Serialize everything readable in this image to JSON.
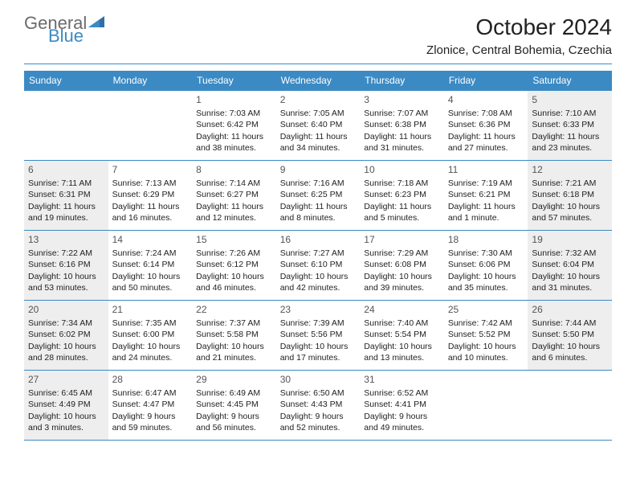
{
  "brand": {
    "word1": "General",
    "word2": "Blue"
  },
  "title": "October 2024",
  "location": "Zlonice, Central Bohemia, Czechia",
  "colors": {
    "accent": "#3b8ac4",
    "shade": "#eeeeee",
    "text": "#222222",
    "logo_gray": "#6b6b6b",
    "bg": "#ffffff"
  },
  "day_headers": [
    "Sunday",
    "Monday",
    "Tuesday",
    "Wednesday",
    "Thursday",
    "Friday",
    "Saturday"
  ],
  "weeks": [
    [
      {
        "n": "",
        "sr": "",
        "ss": "",
        "dl": "",
        "shade": false
      },
      {
        "n": "",
        "sr": "",
        "ss": "",
        "dl": "",
        "shade": false
      },
      {
        "n": "1",
        "sr": "Sunrise: 7:03 AM",
        "ss": "Sunset: 6:42 PM",
        "dl": "Daylight: 11 hours and 38 minutes.",
        "shade": false
      },
      {
        "n": "2",
        "sr": "Sunrise: 7:05 AM",
        "ss": "Sunset: 6:40 PM",
        "dl": "Daylight: 11 hours and 34 minutes.",
        "shade": false
      },
      {
        "n": "3",
        "sr": "Sunrise: 7:07 AM",
        "ss": "Sunset: 6:38 PM",
        "dl": "Daylight: 11 hours and 31 minutes.",
        "shade": false
      },
      {
        "n": "4",
        "sr": "Sunrise: 7:08 AM",
        "ss": "Sunset: 6:36 PM",
        "dl": "Daylight: 11 hours and 27 minutes.",
        "shade": false
      },
      {
        "n": "5",
        "sr": "Sunrise: 7:10 AM",
        "ss": "Sunset: 6:33 PM",
        "dl": "Daylight: 11 hours and 23 minutes.",
        "shade": true
      }
    ],
    [
      {
        "n": "6",
        "sr": "Sunrise: 7:11 AM",
        "ss": "Sunset: 6:31 PM",
        "dl": "Daylight: 11 hours and 19 minutes.",
        "shade": true
      },
      {
        "n": "7",
        "sr": "Sunrise: 7:13 AM",
        "ss": "Sunset: 6:29 PM",
        "dl": "Daylight: 11 hours and 16 minutes.",
        "shade": false
      },
      {
        "n": "8",
        "sr": "Sunrise: 7:14 AM",
        "ss": "Sunset: 6:27 PM",
        "dl": "Daylight: 11 hours and 12 minutes.",
        "shade": false
      },
      {
        "n": "9",
        "sr": "Sunrise: 7:16 AM",
        "ss": "Sunset: 6:25 PM",
        "dl": "Daylight: 11 hours and 8 minutes.",
        "shade": false
      },
      {
        "n": "10",
        "sr": "Sunrise: 7:18 AM",
        "ss": "Sunset: 6:23 PM",
        "dl": "Daylight: 11 hours and 5 minutes.",
        "shade": false
      },
      {
        "n": "11",
        "sr": "Sunrise: 7:19 AM",
        "ss": "Sunset: 6:21 PM",
        "dl": "Daylight: 11 hours and 1 minute.",
        "shade": false
      },
      {
        "n": "12",
        "sr": "Sunrise: 7:21 AM",
        "ss": "Sunset: 6:18 PM",
        "dl": "Daylight: 10 hours and 57 minutes.",
        "shade": true
      }
    ],
    [
      {
        "n": "13",
        "sr": "Sunrise: 7:22 AM",
        "ss": "Sunset: 6:16 PM",
        "dl": "Daylight: 10 hours and 53 minutes.",
        "shade": true
      },
      {
        "n": "14",
        "sr": "Sunrise: 7:24 AM",
        "ss": "Sunset: 6:14 PM",
        "dl": "Daylight: 10 hours and 50 minutes.",
        "shade": false
      },
      {
        "n": "15",
        "sr": "Sunrise: 7:26 AM",
        "ss": "Sunset: 6:12 PM",
        "dl": "Daylight: 10 hours and 46 minutes.",
        "shade": false
      },
      {
        "n": "16",
        "sr": "Sunrise: 7:27 AM",
        "ss": "Sunset: 6:10 PM",
        "dl": "Daylight: 10 hours and 42 minutes.",
        "shade": false
      },
      {
        "n": "17",
        "sr": "Sunrise: 7:29 AM",
        "ss": "Sunset: 6:08 PM",
        "dl": "Daylight: 10 hours and 39 minutes.",
        "shade": false
      },
      {
        "n": "18",
        "sr": "Sunrise: 7:30 AM",
        "ss": "Sunset: 6:06 PM",
        "dl": "Daylight: 10 hours and 35 minutes.",
        "shade": false
      },
      {
        "n": "19",
        "sr": "Sunrise: 7:32 AM",
        "ss": "Sunset: 6:04 PM",
        "dl": "Daylight: 10 hours and 31 minutes.",
        "shade": true
      }
    ],
    [
      {
        "n": "20",
        "sr": "Sunrise: 7:34 AM",
        "ss": "Sunset: 6:02 PM",
        "dl": "Daylight: 10 hours and 28 minutes.",
        "shade": true
      },
      {
        "n": "21",
        "sr": "Sunrise: 7:35 AM",
        "ss": "Sunset: 6:00 PM",
        "dl": "Daylight: 10 hours and 24 minutes.",
        "shade": false
      },
      {
        "n": "22",
        "sr": "Sunrise: 7:37 AM",
        "ss": "Sunset: 5:58 PM",
        "dl": "Daylight: 10 hours and 21 minutes.",
        "shade": false
      },
      {
        "n": "23",
        "sr": "Sunrise: 7:39 AM",
        "ss": "Sunset: 5:56 PM",
        "dl": "Daylight: 10 hours and 17 minutes.",
        "shade": false
      },
      {
        "n": "24",
        "sr": "Sunrise: 7:40 AM",
        "ss": "Sunset: 5:54 PM",
        "dl": "Daylight: 10 hours and 13 minutes.",
        "shade": false
      },
      {
        "n": "25",
        "sr": "Sunrise: 7:42 AM",
        "ss": "Sunset: 5:52 PM",
        "dl": "Daylight: 10 hours and 10 minutes.",
        "shade": false
      },
      {
        "n": "26",
        "sr": "Sunrise: 7:44 AM",
        "ss": "Sunset: 5:50 PM",
        "dl": "Daylight: 10 hours and 6 minutes.",
        "shade": true
      }
    ],
    [
      {
        "n": "27",
        "sr": "Sunrise: 6:45 AM",
        "ss": "Sunset: 4:49 PM",
        "dl": "Daylight: 10 hours and 3 minutes.",
        "shade": true
      },
      {
        "n": "28",
        "sr": "Sunrise: 6:47 AM",
        "ss": "Sunset: 4:47 PM",
        "dl": "Daylight: 9 hours and 59 minutes.",
        "shade": false
      },
      {
        "n": "29",
        "sr": "Sunrise: 6:49 AM",
        "ss": "Sunset: 4:45 PM",
        "dl": "Daylight: 9 hours and 56 minutes.",
        "shade": false
      },
      {
        "n": "30",
        "sr": "Sunrise: 6:50 AM",
        "ss": "Sunset: 4:43 PM",
        "dl": "Daylight: 9 hours and 52 minutes.",
        "shade": false
      },
      {
        "n": "31",
        "sr": "Sunrise: 6:52 AM",
        "ss": "Sunset: 4:41 PM",
        "dl": "Daylight: 9 hours and 49 minutes.",
        "shade": false
      },
      {
        "n": "",
        "sr": "",
        "ss": "",
        "dl": "",
        "shade": false
      },
      {
        "n": "",
        "sr": "",
        "ss": "",
        "dl": "",
        "shade": false
      }
    ]
  ]
}
